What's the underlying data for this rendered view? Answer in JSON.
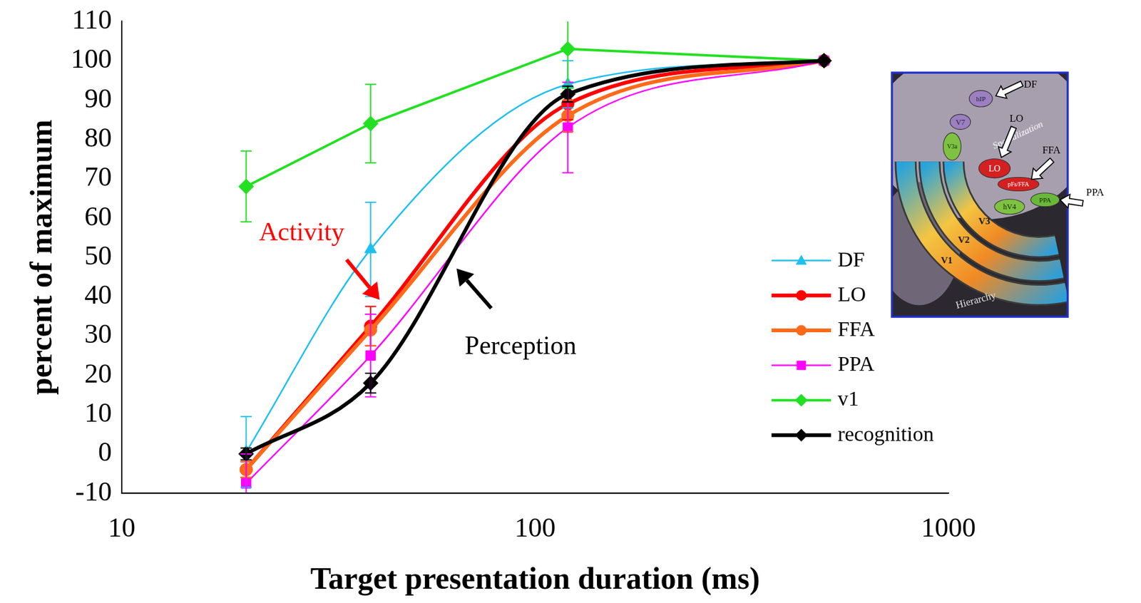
{
  "chart_data": {
    "type": "line",
    "x_label": "Target presentation duration (ms)",
    "y_label": "percent of maximum",
    "x": [
      20,
      40,
      120,
      500
    ],
    "xlim": [
      10,
      1000
    ],
    "xticks": [
      10,
      100,
      1000
    ],
    "ylim": [
      -10,
      110
    ],
    "yticks": [
      -10,
      0,
      10,
      20,
      30,
      40,
      50,
      60,
      70,
      80,
      90,
      100,
      110
    ],
    "log": "x",
    "grid": false,
    "legend": "lower right",
    "series": [
      {
        "name": "DF",
        "color": "#1ec0f0",
        "marker": "triangle",
        "line_style": "smooth",
        "values": [
          0.5,
          52,
          94,
          100
        ],
        "errors": [
          9,
          12,
          6,
          null
        ]
      },
      {
        "name": "LO",
        "color": "#ff0000",
        "marker": "circle",
        "line_style": "smooth",
        "values": [
          -4,
          32.5,
          89,
          100
        ],
        "errors": [
          2,
          5,
          4,
          null
        ]
      },
      {
        "name": "FFA",
        "color": "#ff6a1a",
        "marker": "circle",
        "line_style": "smooth",
        "values": [
          -4,
          31.5,
          86,
          100
        ],
        "errors": [
          2,
          4,
          4,
          null
        ]
      },
      {
        "name": "PPA",
        "color": "#ff00ff",
        "marker": "square",
        "line_style": "smooth",
        "values": [
          -7.5,
          25,
          83,
          100
        ],
        "errors": [
          7.5,
          10.5,
          11.5,
          null
        ]
      },
      {
        "name": "v1",
        "color": "#22e022",
        "marker": "diamond",
        "line_style": "straight",
        "values": [
          68,
          84,
          103,
          100
        ],
        "errors": [
          9,
          10,
          10,
          null
        ]
      },
      {
        "name": "recognition",
        "color": "#000000",
        "marker": "diamond",
        "line_style": "smooth",
        "values": [
          0,
          18,
          91.5,
          100
        ],
        "errors": [
          1.5,
          2.5,
          2,
          null
        ]
      }
    ],
    "annotations": [
      {
        "text": "Activity",
        "color": "#ff0000"
      },
      {
        "text": "Perception",
        "color": "#000000"
      }
    ],
    "inset": {
      "arrow_labels": [
        "DF",
        "LO",
        "FFA",
        "PPA"
      ],
      "areas": [
        "hIP",
        "V7",
        "V3a",
        "LO",
        "pFs/FFA",
        "hV4",
        "PPA",
        "V3",
        "V2",
        "V1"
      ],
      "captions": [
        "Specialization",
        "Hierarchy"
      ]
    }
  }
}
